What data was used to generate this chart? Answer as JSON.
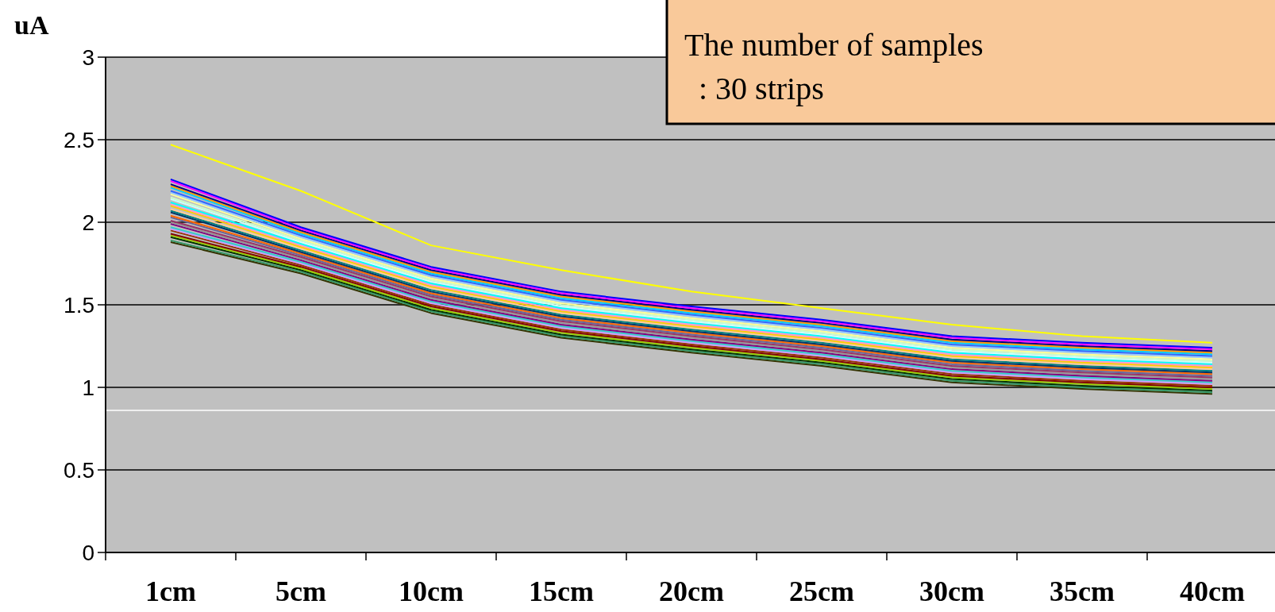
{
  "chart_data": {
    "type": "line",
    "ylabel": "uA",
    "categories": [
      "1cm",
      "5cm",
      "10cm",
      "15cm",
      "20cm",
      "25cm",
      "30cm",
      "35cm",
      "40cm"
    ],
    "ylim": [
      0,
      3
    ],
    "yticks": [
      0,
      0.5,
      1,
      1.5,
      2,
      2.5,
      3
    ],
    "grid": "y",
    "marker": "none",
    "annotations": [
      "The number of  samples",
      ": 30 strips"
    ],
    "ref_lines": [
      {
        "axis": "y",
        "value": 0.86,
        "color": "#ffffff"
      }
    ],
    "series": [
      {
        "color": "#ffff00",
        "values": [
          2.47,
          2.19,
          1.86,
          1.71,
          1.58,
          1.48,
          1.38,
          1.31,
          1.27
        ]
      },
      {
        "color": "#333300",
        "values": [
          1.88,
          1.69,
          1.45,
          1.3,
          1.21,
          1.13,
          1.03,
          0.99,
          0.96
        ]
      },
      {
        "color": "#339966",
        "values": [
          1.89,
          1.7,
          1.46,
          1.31,
          1.22,
          1.14,
          1.04,
          1.0,
          0.97
        ]
      },
      {
        "color": "#003300",
        "values": [
          1.91,
          1.71,
          1.47,
          1.32,
          1.23,
          1.15,
          1.05,
          1.01,
          0.98
        ]
      },
      {
        "color": "#99cc00",
        "values": [
          1.92,
          1.72,
          1.48,
          1.33,
          1.24,
          1.16,
          1.06,
          1.02,
          0.99
        ]
      },
      {
        "color": "#800000",
        "values": [
          1.93,
          1.73,
          1.49,
          1.34,
          1.25,
          1.17,
          1.07,
          1.03,
          1.0
        ]
      },
      {
        "color": "#993300",
        "values": [
          1.95,
          1.74,
          1.5,
          1.35,
          1.26,
          1.18,
          1.08,
          1.04,
          1.01
        ]
      },
      {
        "color": "#cc99ff",
        "values": [
          1.96,
          1.75,
          1.51,
          1.36,
          1.27,
          1.19,
          1.09,
          1.05,
          1.02
        ]
      },
      {
        "color": "#33cccc",
        "values": [
          1.97,
          1.76,
          1.52,
          1.37,
          1.28,
          1.2,
          1.1,
          1.06,
          1.03
        ]
      },
      {
        "color": "#800080",
        "values": [
          1.99,
          1.77,
          1.53,
          1.38,
          1.29,
          1.21,
          1.11,
          1.07,
          1.04
        ]
      },
      {
        "color": "#969696",
        "values": [
          2.0,
          1.78,
          1.54,
          1.39,
          1.3,
          1.22,
          1.12,
          1.08,
          1.05
        ]
      },
      {
        "color": "#993366",
        "values": [
          2.01,
          1.79,
          1.55,
          1.4,
          1.31,
          1.23,
          1.13,
          1.09,
          1.06
        ]
      },
      {
        "color": "#666699",
        "values": [
          2.03,
          1.8,
          1.56,
          1.41,
          1.32,
          1.24,
          1.14,
          1.1,
          1.07
        ]
      },
      {
        "color": "#ff6600",
        "values": [
          2.04,
          1.81,
          1.57,
          1.42,
          1.33,
          1.25,
          1.15,
          1.11,
          1.08
        ]
      },
      {
        "color": "#003366",
        "values": [
          2.06,
          1.82,
          1.58,
          1.43,
          1.34,
          1.26,
          1.16,
          1.12,
          1.09
        ]
      },
      {
        "color": "#008080",
        "values": [
          2.07,
          1.83,
          1.59,
          1.44,
          1.35,
          1.27,
          1.17,
          1.13,
          1.1
        ]
      },
      {
        "color": "#ffcc99",
        "values": [
          2.08,
          1.84,
          1.6,
          1.45,
          1.36,
          1.28,
          1.18,
          1.14,
          1.11
        ]
      },
      {
        "color": "#ffcc00",
        "values": [
          2.1,
          1.85,
          1.61,
          1.46,
          1.37,
          1.29,
          1.19,
          1.15,
          1.12
        ]
      },
      {
        "color": "#ff99cc",
        "values": [
          2.11,
          1.86,
          1.62,
          1.47,
          1.38,
          1.3,
          1.2,
          1.16,
          1.13
        ]
      },
      {
        "color": "#00ffff",
        "values": [
          2.12,
          1.87,
          1.63,
          1.48,
          1.39,
          1.31,
          1.21,
          1.17,
          1.14
        ]
      },
      {
        "color": "#ccffff",
        "values": [
          2.14,
          1.88,
          1.64,
          1.49,
          1.4,
          1.32,
          1.22,
          1.18,
          1.15
        ]
      },
      {
        "color": "#ccffcc",
        "values": [
          2.15,
          1.89,
          1.65,
          1.5,
          1.41,
          1.33,
          1.23,
          1.19,
          1.16
        ]
      },
      {
        "color": "#ffff99",
        "values": [
          2.17,
          1.9,
          1.66,
          1.51,
          1.42,
          1.34,
          1.24,
          1.2,
          1.17
        ]
      },
      {
        "color": "#99ccff",
        "values": [
          2.18,
          1.91,
          1.67,
          1.52,
          1.43,
          1.35,
          1.25,
          1.21,
          1.18
        ]
      },
      {
        "color": "#3366ff",
        "values": [
          2.19,
          1.92,
          1.68,
          1.53,
          1.44,
          1.36,
          1.26,
          1.22,
          1.19
        ]
      },
      {
        "color": "#00ccff",
        "values": [
          2.21,
          1.93,
          1.69,
          1.54,
          1.45,
          1.37,
          1.27,
          1.23,
          1.2
        ]
      },
      {
        "color": "#ff9900",
        "values": [
          2.22,
          1.94,
          1.7,
          1.55,
          1.46,
          1.38,
          1.28,
          1.24,
          1.21
        ]
      },
      {
        "color": "#000080",
        "values": [
          2.23,
          1.95,
          1.71,
          1.56,
          1.47,
          1.39,
          1.29,
          1.25,
          1.22
        ]
      },
      {
        "color": "#ff00ff",
        "values": [
          2.25,
          1.96,
          1.72,
          1.57,
          1.48,
          1.4,
          1.3,
          1.26,
          1.23
        ]
      },
      {
        "color": "#0000ff",
        "values": [
          2.26,
          1.97,
          1.73,
          1.58,
          1.49,
          1.41,
          1.31,
          1.27,
          1.24
        ]
      }
    ]
  }
}
